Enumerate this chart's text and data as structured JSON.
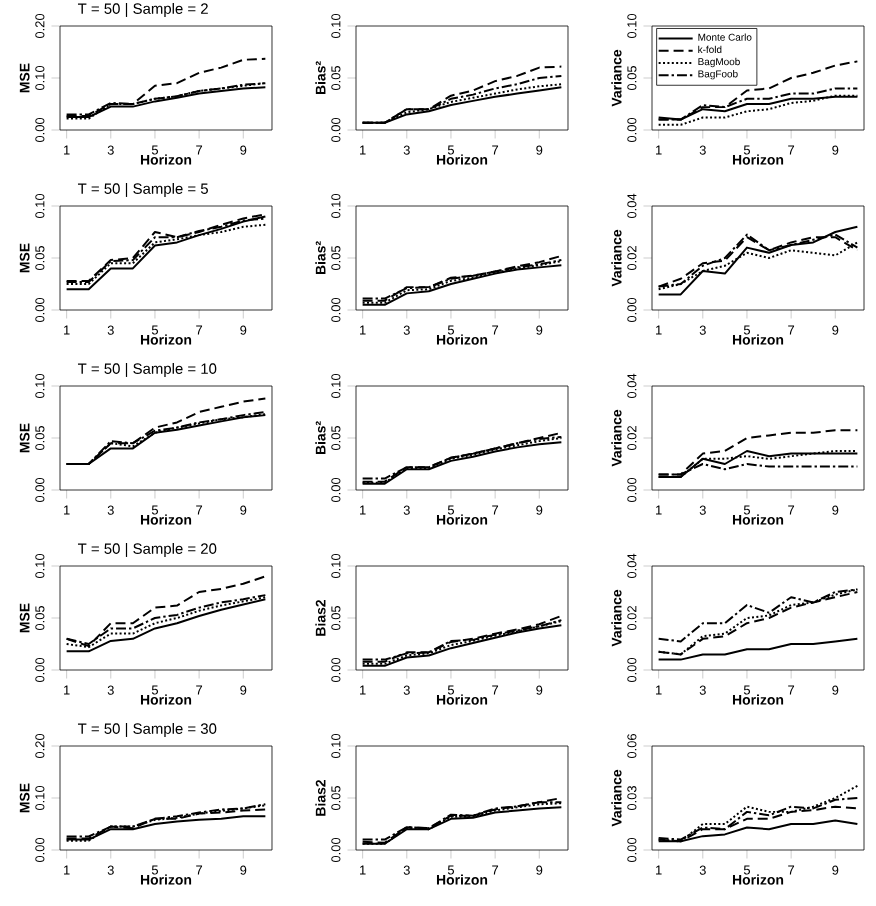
{
  "chart_data": [
    {
      "type": "line",
      "title": "T = 50 | Sample = 2",
      "xlabel": "Horizon",
      "ylabel": "MSE",
      "x": [
        1,
        2,
        3,
        4,
        5,
        6,
        7,
        8,
        9,
        10
      ],
      "xlim": [
        0.7,
        10.3
      ],
      "xticks": [
        1,
        3,
        5,
        7,
        9
      ],
      "ylim": [
        0,
        0.2
      ],
      "yticks": [
        {
          "value": 0,
          "label": "0.00"
        },
        {
          "value": 0.1,
          "label": "0.10"
        },
        {
          "value": 0.2,
          "label": "0.20"
        }
      ],
      "series": [
        {
          "color": "#000000",
          "line_style": "solid",
          "values": [
            0.025,
            0.025,
            0.045,
            0.045,
            0.055,
            0.062,
            0.07,
            0.075,
            0.08,
            0.082
          ]
        },
        {
          "color": "#000000",
          "line_style": "dashed",
          "values": [
            0.027,
            0.027,
            0.05,
            0.05,
            0.085,
            0.09,
            0.11,
            0.12,
            0.135,
            0.137
          ]
        },
        {
          "color": "#000000",
          "line_style": "dotted",
          "values": [
            0.022,
            0.022,
            0.05,
            0.05,
            0.06,
            0.065,
            0.075,
            0.08,
            0.085,
            0.09
          ]
        },
        {
          "color": "#000000",
          "line_style": "dashdot",
          "values": [
            0.03,
            0.03,
            0.052,
            0.05,
            0.06,
            0.065,
            0.075,
            0.08,
            0.087,
            0.09
          ]
        }
      ]
    },
    {
      "type": "line",
      "xlabel": "Horizon",
      "ylabel": "Bias²",
      "x": [
        1,
        2,
        3,
        4,
        5,
        6,
        7,
        8,
        9,
        10
      ],
      "xlim": [
        0.7,
        10.3
      ],
      "xticks": [
        1,
        3,
        5,
        7,
        9
      ],
      "ylim": [
        0,
        0.1
      ],
      "yticks": [
        {
          "value": 0,
          "label": "0.00"
        },
        {
          "value": 0.05,
          "label": "0.05"
        },
        {
          "value": 0.1,
          "label": "0.10"
        }
      ],
      "series": [
        {
          "color": "#000000",
          "line_style": "solid",
          "values": [
            0.007,
            0.007,
            0.015,
            0.018,
            0.024,
            0.028,
            0.032,
            0.035,
            0.038,
            0.041
          ]
        },
        {
          "color": "#000000",
          "line_style": "dashed",
          "values": [
            0.007,
            0.007,
            0.02,
            0.02,
            0.033,
            0.038,
            0.047,
            0.052,
            0.06,
            0.061
          ]
        },
        {
          "color": "#000000",
          "line_style": "dotted",
          "values": [
            0.007,
            0.007,
            0.017,
            0.02,
            0.027,
            0.031,
            0.035,
            0.039,
            0.042,
            0.044
          ]
        },
        {
          "color": "#000000",
          "line_style": "dashdot",
          "values": [
            0.007,
            0.007,
            0.02,
            0.02,
            0.03,
            0.034,
            0.04,
            0.044,
            0.05,
            0.052
          ]
        }
      ]
    },
    {
      "type": "line",
      "xlabel": "Horizon",
      "ylabel": "Variance",
      "legend": "top left",
      "x": [
        1,
        2,
        3,
        4,
        5,
        6,
        7,
        8,
        9,
        10
      ],
      "xlim": [
        0.7,
        10.3
      ],
      "xticks": [
        1,
        3,
        5,
        7,
        9
      ],
      "ylim": [
        0,
        0.1
      ],
      "yticks": [
        {
          "value": 0,
          "label": "0.00"
        },
        {
          "value": 0.05,
          "label": "0.05"
        },
        {
          "value": 0.1,
          "label": "0.10"
        }
      ],
      "series": [
        {
          "name": "Monte Carlo",
          "color": "#000000",
          "line_style": "solid",
          "values": [
            0.012,
            0.01,
            0.02,
            0.018,
            0.025,
            0.025,
            0.03,
            0.03,
            0.032,
            0.032
          ]
        },
        {
          "name": "k-fold",
          "color": "#000000",
          "line_style": "dashed",
          "values": [
            0.01,
            0.01,
            0.022,
            0.022,
            0.038,
            0.04,
            0.05,
            0.055,
            0.062,
            0.066
          ]
        },
        {
          "name": "BagMoob",
          "color": "#000000",
          "line_style": "dotted",
          "values": [
            0.005,
            0.005,
            0.012,
            0.012,
            0.018,
            0.02,
            0.026,
            0.028,
            0.033,
            0.033
          ]
        },
        {
          "name": "BagFoob",
          "color": "#000000",
          "line_style": "dashdot",
          "values": [
            0.01,
            0.01,
            0.024,
            0.022,
            0.03,
            0.03,
            0.035,
            0.035,
            0.04,
            0.04
          ]
        }
      ]
    },
    {
      "type": "line",
      "title": "T = 50 | Sample = 5",
      "xlabel": "Horizon",
      "ylabel": "MSE",
      "x": [
        1,
        2,
        3,
        4,
        5,
        6,
        7,
        8,
        9,
        10
      ],
      "xlim": [
        0.7,
        10.3
      ],
      "xticks": [
        1,
        3,
        5,
        7,
        9
      ],
      "ylim": [
        0,
        0.1
      ],
      "yticks": [
        {
          "value": 0,
          "label": "0.00"
        },
        {
          "value": 0.05,
          "label": "0.05"
        },
        {
          "value": 0.1,
          "label": "0.10"
        }
      ],
      "series": [
        {
          "color": "#000000",
          "line_style": "solid",
          "values": [
            0.02,
            0.02,
            0.04,
            0.04,
            0.062,
            0.065,
            0.072,
            0.078,
            0.085,
            0.09
          ]
        },
        {
          "color": "#000000",
          "line_style": "dashed",
          "values": [
            0.028,
            0.028,
            0.048,
            0.05,
            0.075,
            0.07,
            0.075,
            0.082,
            0.088,
            0.092
          ]
        },
        {
          "color": "#000000",
          "line_style": "dotted",
          "values": [
            0.025,
            0.025,
            0.045,
            0.045,
            0.065,
            0.068,
            0.072,
            0.075,
            0.08,
            0.082
          ]
        },
        {
          "color": "#000000",
          "line_style": "dashdot",
          "values": [
            0.027,
            0.027,
            0.047,
            0.048,
            0.07,
            0.07,
            0.076,
            0.08,
            0.086,
            0.088
          ]
        }
      ]
    },
    {
      "type": "line",
      "xlabel": "Horizon",
      "ylabel": "Bias²",
      "x": [
        1,
        2,
        3,
        4,
        5,
        6,
        7,
        8,
        9,
        10
      ],
      "xlim": [
        0.7,
        10.3
      ],
      "xticks": [
        1,
        3,
        5,
        7,
        9
      ],
      "ylim": [
        0,
        0.1
      ],
      "yticks": [
        {
          "value": 0,
          "label": "0.00"
        },
        {
          "value": 0.05,
          "label": "0.05"
        },
        {
          "value": 0.1,
          "label": "0.10"
        }
      ],
      "series": [
        {
          "color": "#000000",
          "line_style": "solid",
          "values": [
            0.005,
            0.005,
            0.016,
            0.018,
            0.025,
            0.03,
            0.035,
            0.039,
            0.041,
            0.043
          ]
        },
        {
          "color": "#000000",
          "line_style": "dashed",
          "values": [
            0.009,
            0.009,
            0.022,
            0.022,
            0.031,
            0.033,
            0.037,
            0.042,
            0.046,
            0.052
          ]
        },
        {
          "color": "#000000",
          "line_style": "dotted",
          "values": [
            0.007,
            0.007,
            0.019,
            0.02,
            0.028,
            0.031,
            0.036,
            0.04,
            0.043,
            0.047
          ]
        },
        {
          "color": "#000000",
          "line_style": "dashdot",
          "values": [
            0.011,
            0.011,
            0.021,
            0.022,
            0.03,
            0.033,
            0.037,
            0.041,
            0.044,
            0.048
          ]
        }
      ]
    },
    {
      "type": "line",
      "xlabel": "Horizon",
      "ylabel": "Variance",
      "x": [
        1,
        2,
        3,
        4,
        5,
        6,
        7,
        8,
        9,
        10
      ],
      "xlim": [
        0.7,
        10.3
      ],
      "xticks": [
        1,
        3,
        5,
        7,
        9
      ],
      "ylim": [
        0,
        0.04
      ],
      "yticks": [
        {
          "value": 0,
          "label": "0.00"
        },
        {
          "value": 0.02,
          "label": "0.02"
        },
        {
          "value": 0.04,
          "label": "0.04"
        }
      ],
      "series": [
        {
          "color": "#000000",
          "line_style": "solid",
          "values": [
            0.006,
            0.006,
            0.015,
            0.014,
            0.024,
            0.022,
            0.025,
            0.026,
            0.03,
            0.032
          ]
        },
        {
          "color": "#000000",
          "line_style": "dashed",
          "values": [
            0.009,
            0.012,
            0.018,
            0.019,
            0.028,
            0.023,
            0.026,
            0.028,
            0.028,
            0.023
          ]
        },
        {
          "color": "#000000",
          "line_style": "dotted",
          "values": [
            0.008,
            0.01,
            0.015,
            0.017,
            0.022,
            0.02,
            0.023,
            0.022,
            0.021,
            0.026
          ]
        },
        {
          "color": "#000000",
          "line_style": "dashdot",
          "values": [
            0.009,
            0.01,
            0.017,
            0.02,
            0.029,
            0.023,
            0.025,
            0.027,
            0.029,
            0.024
          ]
        }
      ]
    },
    {
      "type": "line",
      "title": "T = 50 | Sample = 10",
      "xlabel": "Horizon",
      "ylabel": "MSE",
      "x": [
        1,
        2,
        3,
        4,
        5,
        6,
        7,
        8,
        9,
        10
      ],
      "xlim": [
        0.7,
        10.3
      ],
      "xticks": [
        1,
        3,
        5,
        7,
        9
      ],
      "ylim": [
        0,
        0.1
      ],
      "yticks": [
        {
          "value": 0,
          "label": "0.00"
        },
        {
          "value": 0.05,
          "label": "0.05"
        },
        {
          "value": 0.1,
          "label": "0.10"
        }
      ],
      "series": [
        {
          "color": "#000000",
          "line_style": "solid",
          "values": [
            0.025,
            0.025,
            0.04,
            0.04,
            0.055,
            0.058,
            0.062,
            0.066,
            0.07,
            0.072
          ]
        },
        {
          "color": "#000000",
          "line_style": "dashed",
          "values": [
            0.025,
            0.025,
            0.045,
            0.045,
            0.06,
            0.065,
            0.075,
            0.08,
            0.085,
            0.088
          ]
        },
        {
          "color": "#000000",
          "line_style": "dotted",
          "values": [
            0.025,
            0.025,
            0.045,
            0.042,
            0.055,
            0.06,
            0.064,
            0.068,
            0.07,
            0.073
          ]
        },
        {
          "color": "#000000",
          "line_style": "dashdot",
          "values": [
            0.025,
            0.025,
            0.047,
            0.045,
            0.057,
            0.06,
            0.065,
            0.068,
            0.072,
            0.075
          ]
        }
      ]
    },
    {
      "type": "line",
      "xlabel": "Horizon",
      "ylabel": "Bias²",
      "x": [
        1,
        2,
        3,
        4,
        5,
        6,
        7,
        8,
        9,
        10
      ],
      "xlim": [
        0.7,
        10.3
      ],
      "xticks": [
        1,
        3,
        5,
        7,
        9
      ],
      "ylim": [
        0,
        0.1
      ],
      "yticks": [
        {
          "value": 0,
          "label": "0.00"
        },
        {
          "value": 0.05,
          "label": "0.05"
        },
        {
          "value": 0.1,
          "label": "0.10"
        }
      ],
      "series": [
        {
          "color": "#000000",
          "line_style": "solid",
          "values": [
            0.006,
            0.006,
            0.02,
            0.02,
            0.028,
            0.032,
            0.037,
            0.041,
            0.044,
            0.046
          ]
        },
        {
          "color": "#000000",
          "line_style": "dashed",
          "values": [
            0.008,
            0.008,
            0.022,
            0.022,
            0.031,
            0.035,
            0.04,
            0.045,
            0.05,
            0.055
          ]
        },
        {
          "color": "#000000",
          "line_style": "dotted",
          "values": [
            0.007,
            0.007,
            0.021,
            0.021,
            0.03,
            0.034,
            0.039,
            0.043,
            0.047,
            0.05
          ]
        },
        {
          "color": "#000000",
          "line_style": "dashdot",
          "values": [
            0.011,
            0.011,
            0.022,
            0.022,
            0.031,
            0.035,
            0.04,
            0.045,
            0.049,
            0.051
          ]
        }
      ]
    },
    {
      "type": "line",
      "xlabel": "Horizon",
      "ylabel": "Variance",
      "x": [
        1,
        2,
        3,
        4,
        5,
        6,
        7,
        8,
        9,
        10
      ],
      "xlim": [
        0.7,
        10.3
      ],
      "xticks": [
        1,
        3,
        5,
        7,
        9
      ],
      "ylim": [
        0,
        0.04
      ],
      "yticks": [
        {
          "value": 0,
          "label": "0.00"
        },
        {
          "value": 0.02,
          "label": "0.02"
        },
        {
          "value": 0.04,
          "label": "0.04"
        }
      ],
      "series": [
        {
          "color": "#000000",
          "line_style": "solid",
          "values": [
            0.005,
            0.005,
            0.012,
            0.01,
            0.015,
            0.013,
            0.014,
            0.014,
            0.014,
            0.014
          ]
        },
        {
          "color": "#000000",
          "line_style": "dashed",
          "values": [
            0.006,
            0.006,
            0.014,
            0.015,
            0.02,
            0.021,
            0.022,
            0.022,
            0.023,
            0.023
          ]
        },
        {
          "color": "#000000",
          "line_style": "dotted",
          "values": [
            0.005,
            0.005,
            0.012,
            0.012,
            0.013,
            0.012,
            0.013,
            0.014,
            0.015,
            0.015
          ]
        },
        {
          "color": "#000000",
          "line_style": "dashdot",
          "values": [
            0.006,
            0.006,
            0.01,
            0.008,
            0.01,
            0.009,
            0.009,
            0.009,
            0.009,
            0.009
          ]
        }
      ]
    },
    {
      "type": "line",
      "title": "T = 50 | Sample = 20",
      "xlabel": "Horizon",
      "ylabel": "MSE",
      "x": [
        1,
        2,
        3,
        4,
        5,
        6,
        7,
        8,
        9,
        10
      ],
      "xlim": [
        0.7,
        10.3
      ],
      "xticks": [
        1,
        3,
        5,
        7,
        9
      ],
      "ylim": [
        0,
        0.1
      ],
      "yticks": [
        {
          "value": 0,
          "label": "0.00"
        },
        {
          "value": 0.05,
          "label": "0.05"
        },
        {
          "value": 0.1,
          "label": "0.10"
        }
      ],
      "series": [
        {
          "color": "#000000",
          "line_style": "solid",
          "values": [
            0.018,
            0.018,
            0.028,
            0.03,
            0.04,
            0.045,
            0.052,
            0.058,
            0.063,
            0.068
          ]
        },
        {
          "color": "#000000",
          "line_style": "dashed",
          "values": [
            0.03,
            0.023,
            0.045,
            0.045,
            0.06,
            0.062,
            0.075,
            0.078,
            0.083,
            0.09
          ]
        },
        {
          "color": "#000000",
          "line_style": "dotted",
          "values": [
            0.025,
            0.022,
            0.035,
            0.035,
            0.045,
            0.05,
            0.057,
            0.062,
            0.066,
            0.07
          ]
        },
        {
          "color": "#000000",
          "line_style": "dashdot",
          "values": [
            0.03,
            0.025,
            0.04,
            0.04,
            0.05,
            0.053,
            0.06,
            0.065,
            0.068,
            0.072
          ]
        }
      ]
    },
    {
      "type": "line",
      "xlabel": "Horizon",
      "ylabel": "Bias2",
      "x": [
        1,
        2,
        3,
        4,
        5,
        6,
        7,
        8,
        9,
        10
      ],
      "xlim": [
        0.7,
        10.3
      ],
      "xticks": [
        1,
        3,
        5,
        7,
        9
      ],
      "ylim": [
        0,
        0.1
      ],
      "yticks": [
        {
          "value": 0,
          "label": "0.00"
        },
        {
          "value": 0.05,
          "label": "0.05"
        },
        {
          "value": 0.1,
          "label": "0.10"
        }
      ],
      "series": [
        {
          "color": "#000000",
          "line_style": "solid",
          "values": [
            0.004,
            0.004,
            0.012,
            0.014,
            0.021,
            0.026,
            0.031,
            0.036,
            0.04,
            0.043
          ]
        },
        {
          "color": "#000000",
          "line_style": "dashed",
          "values": [
            0.008,
            0.008,
            0.017,
            0.017,
            0.027,
            0.03,
            0.035,
            0.039,
            0.044,
            0.052
          ]
        },
        {
          "color": "#000000",
          "line_style": "dotted",
          "values": [
            0.006,
            0.006,
            0.014,
            0.016,
            0.024,
            0.028,
            0.033,
            0.037,
            0.042,
            0.047
          ]
        },
        {
          "color": "#000000",
          "line_style": "dashdot",
          "values": [
            0.01,
            0.01,
            0.016,
            0.017,
            0.028,
            0.029,
            0.034,
            0.038,
            0.042,
            0.048
          ]
        }
      ]
    },
    {
      "type": "line",
      "xlabel": "Horizon",
      "ylabel": "Variance",
      "x": [
        1,
        2,
        3,
        4,
        5,
        6,
        7,
        8,
        9,
        10
      ],
      "xlim": [
        0.7,
        10.3
      ],
      "xticks": [
        1,
        3,
        5,
        7,
        9
      ],
      "ylim": [
        0,
        0.04
      ],
      "yticks": [
        {
          "value": 0,
          "label": "0.00"
        },
        {
          "value": 0.02,
          "label": "0.02"
        },
        {
          "value": 0.04,
          "label": "0.04"
        }
      ],
      "series": [
        {
          "color": "#000000",
          "line_style": "solid",
          "values": [
            0.004,
            0.004,
            0.006,
            0.006,
            0.008,
            0.008,
            0.01,
            0.01,
            0.011,
            0.012
          ]
        },
        {
          "color": "#000000",
          "line_style": "dashed",
          "values": [
            0.007,
            0.006,
            0.012,
            0.013,
            0.018,
            0.02,
            0.024,
            0.026,
            0.028,
            0.03
          ]
        },
        {
          "color": "#000000",
          "line_style": "dotted",
          "values": [
            0.007,
            0.006,
            0.013,
            0.014,
            0.02,
            0.021,
            0.025,
            0.026,
            0.029,
            0.031
          ]
        },
        {
          "color": "#000000",
          "line_style": "dashdot",
          "values": [
            0.012,
            0.011,
            0.018,
            0.018,
            0.025,
            0.022,
            0.028,
            0.026,
            0.03,
            0.031
          ]
        }
      ]
    },
    {
      "type": "line",
      "title": "T = 50 | Sample = 30",
      "xlabel": "Horizon",
      "ylabel": "MSE",
      "x": [
        1,
        2,
        3,
        4,
        5,
        6,
        7,
        8,
        9,
        10
      ],
      "xlim": [
        0.7,
        10.3
      ],
      "xticks": [
        1,
        3,
        5,
        7,
        9
      ],
      "ylim": [
        0,
        0.2
      ],
      "yticks": [
        {
          "value": 0,
          "label": "0.00"
        },
        {
          "value": 0.1,
          "label": "0.10"
        },
        {
          "value": 0.2,
          "label": "0.20"
        }
      ],
      "series": [
        {
          "color": "#000000",
          "line_style": "solid",
          "values": [
            0.02,
            0.02,
            0.04,
            0.04,
            0.05,
            0.055,
            0.058,
            0.06,
            0.065,
            0.065
          ]
        },
        {
          "color": "#000000",
          "line_style": "dashed",
          "values": [
            0.022,
            0.022,
            0.045,
            0.042,
            0.06,
            0.06,
            0.07,
            0.072,
            0.076,
            0.078
          ]
        },
        {
          "color": "#000000",
          "line_style": "dotted",
          "values": [
            0.018,
            0.018,
            0.045,
            0.045,
            0.058,
            0.062,
            0.07,
            0.075,
            0.08,
            0.086
          ]
        },
        {
          "color": "#000000",
          "line_style": "dashdot",
          "values": [
            0.026,
            0.026,
            0.045,
            0.045,
            0.06,
            0.065,
            0.072,
            0.078,
            0.08,
            0.088
          ]
        }
      ]
    },
    {
      "type": "line",
      "xlabel": "Horizon",
      "ylabel": "Bias2",
      "x": [
        1,
        2,
        3,
        4,
        5,
        6,
        7,
        8,
        9,
        10
      ],
      "xlim": [
        0.7,
        10.3
      ],
      "xticks": [
        1,
        3,
        5,
        7,
        9
      ],
      "ylim": [
        0,
        0.1
      ],
      "yticks": [
        {
          "value": 0,
          "label": "0.00"
        },
        {
          "value": 0.05,
          "label": "0.05"
        },
        {
          "value": 0.1,
          "label": "0.10"
        }
      ],
      "series": [
        {
          "color": "#000000",
          "line_style": "solid",
          "values": [
            0.006,
            0.006,
            0.02,
            0.02,
            0.03,
            0.031,
            0.036,
            0.038,
            0.04,
            0.041
          ]
        },
        {
          "color": "#000000",
          "line_style": "dashed",
          "values": [
            0.008,
            0.007,
            0.022,
            0.021,
            0.033,
            0.033,
            0.039,
            0.042,
            0.046,
            0.05
          ]
        },
        {
          "color": "#000000",
          "line_style": "dotted",
          "values": [
            0.006,
            0.006,
            0.021,
            0.02,
            0.032,
            0.032,
            0.038,
            0.041,
            0.044,
            0.045
          ]
        },
        {
          "color": "#000000",
          "line_style": "dashdot",
          "values": [
            0.01,
            0.01,
            0.022,
            0.021,
            0.034,
            0.033,
            0.04,
            0.042,
            0.046,
            0.046
          ]
        }
      ]
    },
    {
      "type": "line",
      "xlabel": "Horizon",
      "ylabel": "Variance",
      "x": [
        1,
        2,
        3,
        4,
        5,
        6,
        7,
        8,
        9,
        10
      ],
      "xlim": [
        0.7,
        10.3
      ],
      "xticks": [
        1,
        3,
        5,
        7,
        9
      ],
      "ylim": [
        0,
        0.06
      ],
      "yticks": [
        {
          "value": 0,
          "label": "0.00"
        },
        {
          "value": 0.03,
          "label": "0.03"
        },
        {
          "value": 0.06,
          "label": "0.06"
        }
      ],
      "series": [
        {
          "color": "#000000",
          "line_style": "solid",
          "values": [
            0.005,
            0.005,
            0.008,
            0.009,
            0.013,
            0.012,
            0.015,
            0.015,
            0.017,
            0.015
          ]
        },
        {
          "color": "#000000",
          "line_style": "dashed",
          "values": [
            0.006,
            0.005,
            0.012,
            0.012,
            0.018,
            0.018,
            0.022,
            0.023,
            0.025,
            0.024
          ]
        },
        {
          "color": "#000000",
          "line_style": "dotted",
          "values": [
            0.006,
            0.005,
            0.015,
            0.015,
            0.025,
            0.022,
            0.022,
            0.025,
            0.03,
            0.037
          ]
        },
        {
          "color": "#000000",
          "line_style": "dashdot",
          "values": [
            0.007,
            0.006,
            0.013,
            0.012,
            0.022,
            0.02,
            0.025,
            0.024,
            0.029,
            0.03
          ]
        }
      ]
    }
  ]
}
